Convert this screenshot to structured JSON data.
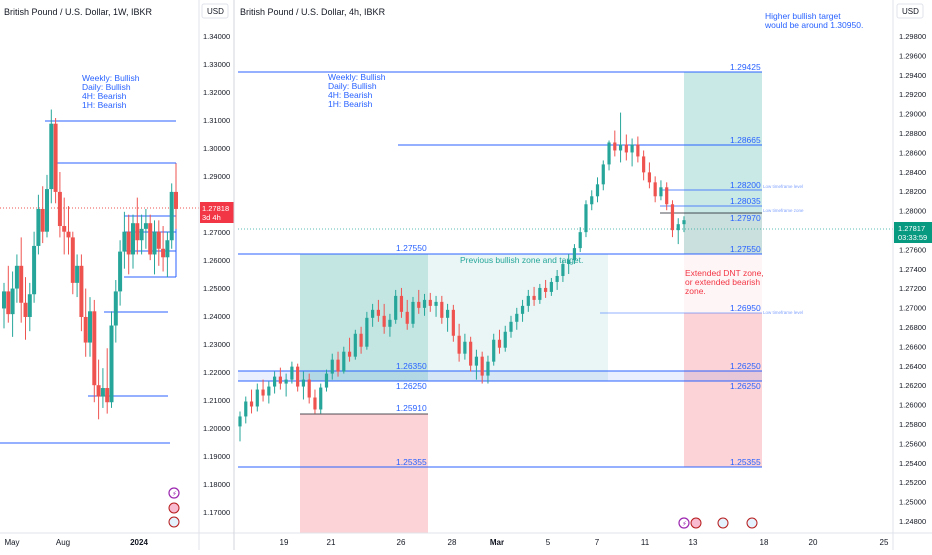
{
  "left_panel": {
    "title": "British Pound / U.S. Dollar, 1W, IBKR",
    "currency": "USD",
    "price_label": "1.27818",
    "countdown_label": "3d 4h",
    "y_ticks": [
      "1.34000",
      "1.33000",
      "1.32000",
      "1.31000",
      "1.30000",
      "1.29000",
      "1.28000",
      "1.27000",
      "1.26000",
      "1.25000",
      "1.24000",
      "1.23000",
      "1.22000",
      "1.21000",
      "1.20000",
      "1.19000",
      "1.18000",
      "1.17000"
    ],
    "x_ticks": [
      "May",
      "Aug",
      "2024"
    ],
    "note_lines": [
      "Weekly: Bullish",
      "Daily: Bullish",
      "4H: Bearish",
      "1H: Bearish"
    ]
  },
  "right_panel": {
    "title": "British Pound / U.S. Dollar, 4h, IBKR",
    "currency": "USD",
    "price_label": "1.27817",
    "countdown_label": "03:33:59",
    "y_ticks": [
      "1.29800",
      "1.29600",
      "1.29400",
      "1.29200",
      "1.29000",
      "1.28800",
      "1.28600",
      "1.28400",
      "1.28200",
      "1.28000",
      "1.27800",
      "1.27600",
      "1.27400",
      "1.27200",
      "1.27000",
      "1.26800",
      "1.26600",
      "1.26400",
      "1.26200",
      "1.26000",
      "1.25800",
      "1.25600",
      "1.25400",
      "1.25200",
      "1.25000",
      "1.24800"
    ],
    "x_ticks": [
      "19",
      "21",
      "26",
      "28",
      "Mar",
      "5",
      "7",
      "11",
      "13",
      "18",
      "20",
      "25"
    ],
    "note_lines": [
      "Weekly: Bullish",
      "Daily: Bullish",
      "4H: Bearish",
      "1H: Bearish"
    ],
    "target_note_lines": [
      "Higher bullish target",
      "would be around 1.30950."
    ],
    "zone_note": "Previous bullish zone and target.",
    "dnt_note_lines": [
      "Extended DNT zone,",
      "or extended bearish",
      "zone."
    ],
    "levels": [
      "1.29425",
      "1.28665",
      "1.28200",
      "1.28035",
      "1.27970",
      "1.27550",
      "1.26950",
      "1.26350",
      "1.26250",
      "1.25910",
      "1.25355"
    ],
    "left_levels": [
      "1.27550",
      "1.26350",
      "1.26250",
      "1.25910",
      "1.25355"
    ],
    "level_tags": {
      "l1": "Low timeframe level",
      "l2": "Low timeframe zone",
      "l3": "Low timeframe level"
    }
  },
  "colors": {
    "up": "#26a69a",
    "down": "#ef5350",
    "line": "#2962ff",
    "note": "#2962ff",
    "dnt_text": "#f23645",
    "target_zone": "#26a69a",
    "stop_zone": "#f23645"
  },
  "chart_data": [
    {
      "type": "candlestick",
      "title": "British Pound / U.S. Dollar, 1W, IBKR",
      "ylabel": "USD",
      "ylim": [
        1.164,
        1.348
      ],
      "x_ticks": [
        "May",
        "Aug",
        "2024"
      ],
      "last_price": 1.27818,
      "series": [
        {
          "name": "GBPUSD 1W",
          "ohlc": [
            [
              1.243,
              1.252,
              1.236,
              1.249
            ],
            [
              1.249,
              1.258,
              1.238,
              1.241
            ],
            [
              1.241,
              1.256,
              1.233,
              1.25
            ],
            [
              1.25,
              1.262,
              1.245,
              1.258
            ],
            [
              1.258,
              1.268,
              1.238,
              1.245
            ],
            [
              1.245,
              1.254,
              1.232,
              1.24
            ],
            [
              1.24,
              1.252,
              1.235,
              1.248
            ],
            [
              1.248,
              1.27,
              1.245,
              1.265
            ],
            [
              1.265,
              1.283,
              1.262,
              1.278
            ],
            [
              1.278,
              1.286,
              1.266,
              1.27
            ],
            [
              1.27,
              1.29,
              1.268,
              1.285
            ],
            [
              1.285,
              1.313,
              1.28,
              1.308
            ],
            [
              1.308,
              1.31,
              1.28,
              1.284
            ],
            [
              1.284,
              1.291,
              1.268,
              1.272
            ],
            [
              1.272,
              1.282,
              1.262,
              1.27
            ],
            [
              1.27,
              1.279,
              1.262,
              1.268
            ],
            [
              1.268,
              1.27,
              1.248,
              1.252
            ],
            [
              1.252,
              1.262,
              1.247,
              1.258
            ],
            [
              1.258,
              1.262,
              1.235,
              1.24
            ],
            [
              1.24,
              1.25,
              1.226,
              1.231
            ],
            [
              1.231,
              1.247,
              1.226,
              1.242
            ],
            [
              1.242,
              1.246,
              1.21,
              1.216
            ],
            [
              1.216,
              1.225,
              1.204,
              1.212
            ],
            [
              1.212,
              1.222,
              1.208,
              1.215
            ],
            [
              1.215,
              1.229,
              1.206,
              1.21
            ],
            [
              1.21,
              1.242,
              1.208,
              1.237
            ],
            [
              1.237,
              1.253,
              1.231,
              1.249
            ],
            [
              1.249,
              1.267,
              1.244,
              1.263
            ],
            [
              1.263,
              1.277,
              1.257,
              1.27
            ],
            [
              1.27,
              1.276,
              1.255,
              1.262
            ],
            [
              1.262,
              1.276,
              1.257,
              1.273
            ],
            [
              1.273,
              1.282,
              1.262,
              1.267
            ],
            [
              1.267,
              1.276,
              1.262,
              1.271
            ],
            [
              1.271,
              1.278,
              1.264,
              1.273
            ],
            [
              1.273,
              1.276,
              1.26,
              1.262
            ],
            [
              1.262,
              1.274,
              1.255,
              1.27
            ],
            [
              1.27,
              1.274,
              1.258,
              1.264
            ],
            [
              1.264,
              1.272,
              1.256,
              1.261
            ],
            [
              1.261,
              1.27,
              1.254,
              1.267
            ],
            [
              1.267,
              1.287,
              1.264,
              1.284
            ],
            [
              1.284,
              1.294,
              1.271,
              1.278
            ]
          ]
        }
      ]
    },
    {
      "type": "candlestick",
      "title": "British Pound / U.S. Dollar, 4h, IBKR",
      "ylabel": "USD",
      "ylim": [
        1.2468,
        1.2995
      ],
      "x_ticks": [
        "19",
        "21",
        "26",
        "28",
        "Mar",
        "5",
        "7",
        "11",
        "13",
        "18",
        "20",
        "25"
      ],
      "last_price": 1.27817,
      "series": [
        {
          "name": "GBPUSD 4h",
          "ohlc": [
            [
              1.2575,
              1.259,
              1.256,
              1.2585
            ],
            [
              1.2585,
              1.2605,
              1.2578,
              1.26
            ],
            [
              1.26,
              1.2612,
              1.2588,
              1.2595
            ],
            [
              1.2595,
              1.2618,
              1.259,
              1.2612
            ],
            [
              1.2612,
              1.2622,
              1.26,
              1.2606
            ],
            [
              1.2606,
              1.262,
              1.2598,
              1.2615
            ],
            [
              1.2615,
              1.263,
              1.2608,
              1.2625
            ],
            [
              1.2625,
              1.2634,
              1.2612,
              1.2618
            ],
            [
              1.2618,
              1.2628,
              1.2605,
              1.2622
            ],
            [
              1.2622,
              1.264,
              1.2618,
              1.2635
            ],
            [
              1.2635,
              1.2638,
              1.261,
              1.2615
            ],
            [
              1.2615,
              1.263,
              1.2602,
              1.2622
            ],
            [
              1.2622,
              1.2628,
              1.2598,
              1.2604
            ],
            [
              1.2604,
              1.2612,
              1.2588,
              1.2592
            ],
            [
              1.2592,
              1.2618,
              1.2588,
              1.2614
            ],
            [
              1.2614,
              1.2632,
              1.261,
              1.2628
            ],
            [
              1.2628,
              1.2648,
              1.2622,
              1.2642
            ],
            [
              1.2642,
              1.265,
              1.2625,
              1.263
            ],
            [
              1.263,
              1.2655,
              1.2628,
              1.265
            ],
            [
              1.265,
              1.2664,
              1.264,
              1.2645
            ],
            [
              1.2645,
              1.2672,
              1.2642,
              1.2668
            ],
            [
              1.2668,
              1.2675,
              1.2648,
              1.2655
            ],
            [
              1.2655,
              1.269,
              1.2652,
              1.2684
            ],
            [
              1.2684,
              1.2698,
              1.2675,
              1.2692
            ],
            [
              1.2692,
              1.2702,
              1.268,
              1.2686
            ],
            [
              1.2686,
              1.2698,
              1.2668,
              1.2675
            ],
            [
              1.2675,
              1.2688,
              1.2665,
              1.2682
            ],
            [
              1.2682,
              1.2712,
              1.2678,
              1.2706
            ],
            [
              1.2706,
              1.2714,
              1.2684,
              1.269
            ],
            [
              1.269,
              1.2702,
              1.2672,
              1.2678
            ],
            [
              1.2678,
              1.2705,
              1.2674,
              1.27
            ],
            [
              1.27,
              1.2712,
              1.2688,
              1.2694
            ],
            [
              1.2694,
              1.2708,
              1.2686,
              1.2702
            ],
            [
              1.2702,
              1.2709,
              1.269,
              1.2696
            ],
            [
              1.2696,
              1.2706,
              1.2685,
              1.27
            ],
            [
              1.27,
              1.2706,
              1.2678,
              1.2684
            ],
            [
              1.2684,
              1.2698,
              1.267,
              1.2692
            ],
            [
              1.2692,
              1.2697,
              1.266,
              1.2666
            ],
            [
              1.2666,
              1.2678,
              1.264,
              1.2648
            ],
            [
              1.2648,
              1.2668,
              1.2642,
              1.266
            ],
            [
              1.266,
              1.2665,
              1.263,
              1.2636
            ],
            [
              1.2636,
              1.2652,
              1.2622,
              1.2645
            ],
            [
              1.2645,
              1.265,
              1.2618,
              1.2626
            ],
            [
              1.2626,
              1.2646,
              1.2618,
              1.264
            ],
            [
              1.264,
              1.2668,
              1.2636,
              1.2662
            ],
            [
              1.2662,
              1.2672,
              1.2648,
              1.2654
            ],
            [
              1.2654,
              1.2676,
              1.265,
              1.267
            ],
            [
              1.267,
              1.2686,
              1.2664,
              1.268
            ],
            [
              1.268,
              1.2694,
              1.2672,
              1.2688
            ],
            [
              1.2688,
              1.2702,
              1.268,
              1.2696
            ],
            [
              1.2696,
              1.2712,
              1.269,
              1.2706
            ],
            [
              1.2706,
              1.2715,
              1.2696,
              1.2702
            ],
            [
              1.2702,
              1.2718,
              1.2698,
              1.2714
            ],
            [
              1.2714,
              1.2722,
              1.2704,
              1.271
            ],
            [
              1.271,
              1.2724,
              1.2706,
              1.272
            ],
            [
              1.272,
              1.2732,
              1.2712,
              1.2726
            ],
            [
              1.2726,
              1.2742,
              1.272,
              1.2738
            ],
            [
              1.2738,
              1.2748,
              1.2728,
              1.2742
            ],
            [
              1.2742,
              1.2758,
              1.2738,
              1.2754
            ],
            [
              1.2754,
              1.2775,
              1.275,
              1.277
            ],
            [
              1.277,
              1.2802,
              1.2765,
              1.2798
            ],
            [
              1.2798,
              1.2812,
              1.2792,
              1.2806
            ],
            [
              1.2806,
              1.2825,
              1.28,
              1.2818
            ],
            [
              1.2818,
              1.2842,
              1.2812,
              1.2838
            ],
            [
              1.2838,
              1.2862,
              1.2832,
              1.286
            ],
            [
              1.286,
              1.2872,
              1.2846,
              1.2852
            ],
            [
              1.2852,
              1.289,
              1.284,
              1.2858
            ],
            [
              1.2858,
              1.2868,
              1.2842,
              1.285
            ],
            [
              1.285,
              1.2864,
              1.2836,
              1.2858
            ],
            [
              1.2858,
              1.2866,
              1.284,
              1.2846
            ],
            [
              1.2846,
              1.2852,
              1.2822,
              1.283
            ],
            [
              1.283,
              1.284,
              1.2814,
              1.282
            ],
            [
              1.282,
              1.2826,
              1.28,
              1.2806
            ],
            [
              1.2806,
              1.2822,
              1.2802,
              1.2815
            ],
            [
              1.2815,
              1.282,
              1.2792,
              1.2798
            ],
            [
              1.2798,
              1.2802,
              1.2765,
              1.2772
            ],
            [
              1.2772,
              1.2784,
              1.2758,
              1.2778
            ],
            [
              1.2778,
              1.2786,
              1.277,
              1.2782
            ]
          ]
        }
      ]
    }
  ]
}
